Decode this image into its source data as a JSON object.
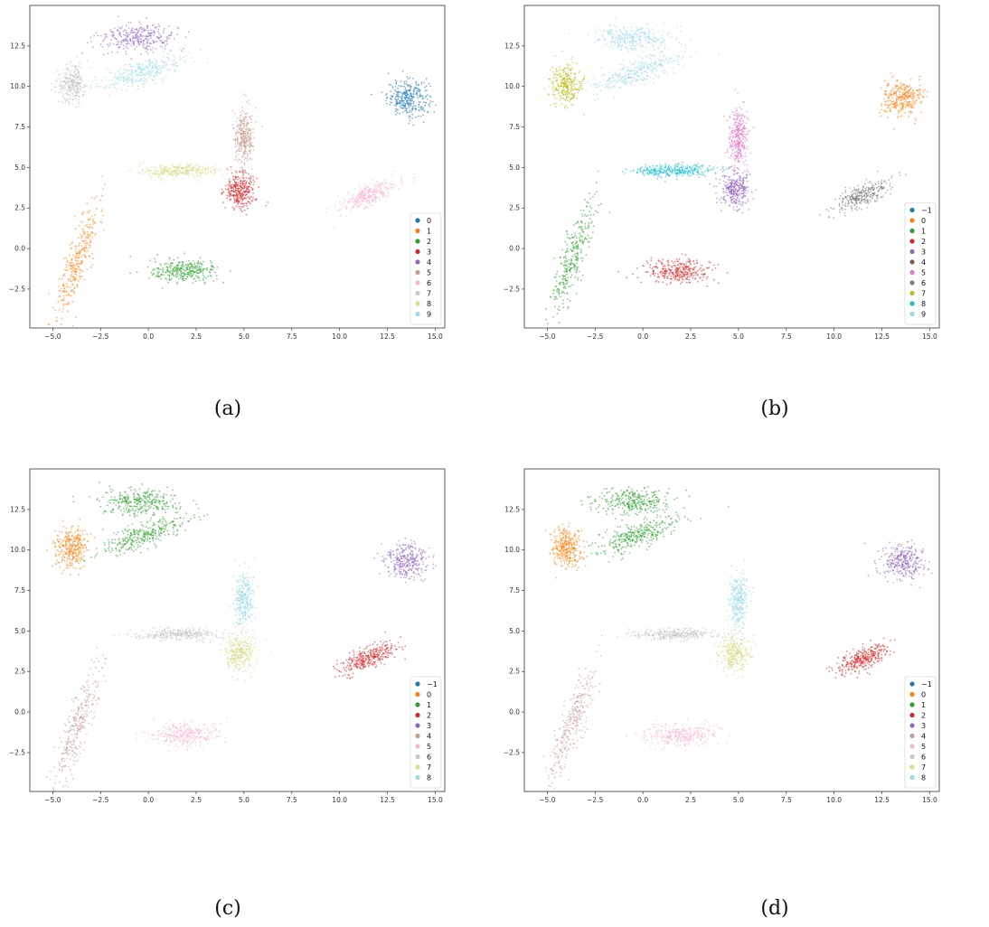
{
  "palette": {
    "blue": "#1f77b4",
    "orange": "#ff7f0e",
    "green": "#2ca02c",
    "red": "#d62728",
    "purple": "#9467bd",
    "brown": "#c49c94",
    "pink": "#f7b6d2",
    "gray": "#c7c7c7",
    "olive": "#dbdb8d",
    "lightblue": "#9edae5",
    "darkgray": "#7f7f7f",
    "darkolive": "#bcbd22",
    "cyan": "#17becf",
    "pinkmag": "#e377c2"
  },
  "chart_data": [
    {
      "type": "scatter",
      "caption": "(a)",
      "xlim": [
        -6.2,
        15.5
      ],
      "ylim": [
        -4.9,
        15.0
      ],
      "xticks": [
        "−5.0",
        "−2.5",
        "0.0",
        "2.5",
        "5.0",
        "7.5",
        "10.0",
        "12.5",
        "15.0"
      ],
      "xtick_values": [
        -5,
        -2.5,
        0,
        2.5,
        5,
        7.5,
        10,
        12.5,
        15
      ],
      "yticks": [
        "−2.5",
        "0.0",
        "2.5",
        "5.0",
        "7.5",
        "10.0",
        "12.5"
      ],
      "ytick_values": [
        -2.5,
        0,
        2.5,
        5,
        7.5,
        10,
        12.5
      ],
      "legend_position": "lower right",
      "legend": [
        {
          "label": "0",
          "color": "#1f77b4"
        },
        {
          "label": "1",
          "color": "#ff7f0e"
        },
        {
          "label": "2",
          "color": "#2ca02c"
        },
        {
          "label": "3",
          "color": "#d62728"
        },
        {
          "label": "4",
          "color": "#9467bd"
        },
        {
          "label": "5",
          "color": "#c49c94"
        },
        {
          "label": "6",
          "color": "#f7b6d2"
        },
        {
          "label": "7",
          "color": "#c7c7c7"
        },
        {
          "label": "8",
          "color": "#dbdb8d"
        },
        {
          "label": "9",
          "color": "#9edae5"
        }
      ],
      "clusters": [
        {
          "label": "0",
          "color": "#1f77b4",
          "center": [
            13.6,
            9.3
          ],
          "spread": [
            0.55,
            0.55
          ]
        },
        {
          "label": "1",
          "color": "#ff7f0e",
          "center": [
            -3.7,
            -0.7
          ],
          "spread": [
            0.3,
            1.9
          ],
          "tilt": -0.28
        },
        {
          "label": "2",
          "color": "#2ca02c",
          "center": [
            1.9,
            -1.4
          ],
          "spread": [
            0.9,
            0.35
          ]
        },
        {
          "label": "3",
          "color": "#d62728",
          "center": [
            4.8,
            3.6
          ],
          "spread": [
            0.4,
            0.55
          ]
        },
        {
          "label": "4",
          "color": "#9467bd",
          "center": [
            -0.5,
            13.0
          ],
          "spread": [
            1.0,
            0.4
          ]
        },
        {
          "label": "5",
          "color": "#c49c94",
          "center": [
            5.0,
            6.9
          ],
          "spread": [
            0.25,
            0.9
          ]
        },
        {
          "label": "6",
          "color": "#f7b6d2",
          "center": [
            11.5,
            3.3
          ],
          "spread": [
            0.8,
            0.3
          ],
          "tilt": 0.5
        },
        {
          "label": "7",
          "color": "#c7c7c7",
          "center": [
            -4.0,
            10.1
          ],
          "spread": [
            0.4,
            0.6
          ]
        },
        {
          "label": "8",
          "color": "#dbdb8d",
          "center": [
            1.6,
            4.8
          ],
          "spread": [
            1.1,
            0.18
          ]
        },
        {
          "label": "9",
          "color": "#9edae5",
          "center": [
            -0.3,
            10.9
          ],
          "spread": [
            1.2,
            0.35
          ],
          "tilt": 0.4
        }
      ]
    },
    {
      "type": "scatter",
      "caption": "(b)",
      "xlim": [
        -6.2,
        15.5
      ],
      "ylim": [
        -4.9,
        15.0
      ],
      "xticks": [
        "−5.0",
        "−2.5",
        "0.0",
        "2.5",
        "5.0",
        "7.5",
        "10.0",
        "12.5",
        "15.0"
      ],
      "xtick_values": [
        -5,
        -2.5,
        0,
        2.5,
        5,
        7.5,
        10,
        12.5,
        15
      ],
      "yticks": [
        "−2.5",
        "0.0",
        "2.5",
        "5.0",
        "7.5",
        "10.0",
        "12.5"
      ],
      "ytick_values": [
        -2.5,
        0,
        2.5,
        5,
        7.5,
        10,
        12.5
      ],
      "legend_position": "lower right",
      "legend": [
        {
          "label": "−1",
          "color": "#1f77b4"
        },
        {
          "label": "0",
          "color": "#ff7f0e"
        },
        {
          "label": "1",
          "color": "#2ca02c"
        },
        {
          "label": "2",
          "color": "#d62728"
        },
        {
          "label": "3",
          "color": "#9467bd"
        },
        {
          "label": "4",
          "color": "#8c564b"
        },
        {
          "label": "5",
          "color": "#e377c2"
        },
        {
          "label": "6",
          "color": "#7f7f7f"
        },
        {
          "label": "7",
          "color": "#bcbd22"
        },
        {
          "label": "8",
          "color": "#17becf"
        },
        {
          "label": "9",
          "color": "#9edae5"
        }
      ],
      "clusters": [
        {
          "label": "0",
          "color": "#ff7f0e",
          "center": [
            13.6,
            9.3
          ],
          "spread": [
            0.55,
            0.55
          ]
        },
        {
          "label": "1",
          "color": "#2ca02c",
          "center": [
            -3.7,
            -0.7
          ],
          "spread": [
            0.3,
            1.9
          ],
          "tilt": -0.28
        },
        {
          "label": "2",
          "color": "#d62728",
          "center": [
            1.9,
            -1.4
          ],
          "spread": [
            0.9,
            0.35
          ]
        },
        {
          "label": "3",
          "color": "#9467bd",
          "center": [
            4.8,
            3.6
          ],
          "spread": [
            0.4,
            0.55
          ]
        },
        {
          "label": "5",
          "color": "#e377c2",
          "center": [
            5.0,
            6.9
          ],
          "spread": [
            0.25,
            0.9
          ]
        },
        {
          "label": "6",
          "color": "#7f7f7f",
          "center": [
            11.5,
            3.3
          ],
          "spread": [
            0.8,
            0.3
          ],
          "tilt": 0.5
        },
        {
          "label": "7",
          "color": "#bcbd22",
          "center": [
            -4.0,
            10.1
          ],
          "spread": [
            0.4,
            0.6
          ]
        },
        {
          "label": "8",
          "color": "#17becf",
          "center": [
            1.6,
            4.8
          ],
          "spread": [
            1.1,
            0.18
          ]
        },
        {
          "label": "9",
          "color": "#9edae5",
          "center": [
            -0.5,
            13.0
          ],
          "spread": [
            1.0,
            0.4
          ]
        },
        {
          "label": "9",
          "color": "#9edae5",
          "center": [
            -0.3,
            10.9
          ],
          "spread": [
            1.2,
            0.35
          ],
          "tilt": 0.4
        }
      ]
    },
    {
      "type": "scatter",
      "caption": "(c)",
      "xlim": [
        -6.2,
        15.5
      ],
      "ylim": [
        -4.9,
        15.0
      ],
      "xticks": [
        "−5.0",
        "−2.5",
        "0.0",
        "2.5",
        "5.0",
        "7.5",
        "10.0",
        "12.5",
        "15.0"
      ],
      "xtick_values": [
        -5,
        -2.5,
        0,
        2.5,
        5,
        7.5,
        10,
        12.5,
        15
      ],
      "yticks": [
        "−2.5",
        "0.0",
        "2.5",
        "5.0",
        "7.5",
        "10.0",
        "12.5"
      ],
      "ytick_values": [
        -2.5,
        0,
        2.5,
        5,
        7.5,
        10,
        12.5
      ],
      "legend_position": "lower right",
      "legend": [
        {
          "label": "−1",
          "color": "#1f77b4"
        },
        {
          "label": "0",
          "color": "#ff7f0e"
        },
        {
          "label": "1",
          "color": "#2ca02c"
        },
        {
          "label": "2",
          "color": "#d62728"
        },
        {
          "label": "3",
          "color": "#9467bd"
        },
        {
          "label": "4",
          "color": "#c49c94"
        },
        {
          "label": "5",
          "color": "#f7b6d2"
        },
        {
          "label": "6",
          "color": "#c7c7c7"
        },
        {
          "label": "7",
          "color": "#dbdb8d"
        },
        {
          "label": "8",
          "color": "#9edae5"
        }
      ],
      "clusters": [
        {
          "label": "3",
          "color": "#9467bd",
          "center": [
            13.6,
            9.3
          ],
          "spread": [
            0.55,
            0.55
          ]
        },
        {
          "label": "4",
          "color": "#c49c94",
          "center": [
            -3.7,
            -0.7
          ],
          "spread": [
            0.3,
            1.9
          ],
          "tilt": -0.28
        },
        {
          "label": "5",
          "color": "#f7b6d2",
          "center": [
            1.9,
            -1.4
          ],
          "spread": [
            0.9,
            0.35
          ]
        },
        {
          "label": "7",
          "color": "#dbdb8d",
          "center": [
            4.8,
            3.6
          ],
          "spread": [
            0.4,
            0.55
          ]
        },
        {
          "label": "1",
          "color": "#2ca02c",
          "center": [
            -0.5,
            13.0
          ],
          "spread": [
            1.0,
            0.4
          ]
        },
        {
          "label": "8",
          "color": "#9edae5",
          "center": [
            5.0,
            6.9
          ],
          "spread": [
            0.25,
            0.9
          ]
        },
        {
          "label": "2",
          "color": "#d62728",
          "center": [
            11.5,
            3.3
          ],
          "spread": [
            0.8,
            0.3
          ],
          "tilt": 0.5
        },
        {
          "label": "0",
          "color": "#ff7f0e",
          "center": [
            -4.0,
            10.1
          ],
          "spread": [
            0.4,
            0.6
          ]
        },
        {
          "label": "6",
          "color": "#c7c7c7",
          "center": [
            1.6,
            4.8
          ],
          "spread": [
            1.1,
            0.18
          ]
        },
        {
          "label": "1",
          "color": "#2ca02c",
          "center": [
            -0.3,
            10.9
          ],
          "spread": [
            1.2,
            0.35
          ],
          "tilt": 0.4
        }
      ]
    },
    {
      "type": "scatter",
      "caption": "(d)",
      "xlim": [
        -6.2,
        15.5
      ],
      "ylim": [
        -4.9,
        15.0
      ],
      "xticks": [
        "−5.0",
        "−2.5",
        "0.0",
        "2.5",
        "5.0",
        "7.5",
        "10.0",
        "12.5",
        "15.0"
      ],
      "xtick_values": [
        -5,
        -2.5,
        0,
        2.5,
        5,
        7.5,
        10,
        12.5,
        15
      ],
      "yticks": [
        "−2.5",
        "0.0",
        "2.5",
        "5.0",
        "7.5",
        "10.0",
        "12.5"
      ],
      "ytick_values": [
        -2.5,
        0,
        2.5,
        5,
        7.5,
        10,
        12.5
      ],
      "legend_position": "lower right",
      "legend": [
        {
          "label": "−1",
          "color": "#1f77b4"
        },
        {
          "label": "0",
          "color": "#ff7f0e"
        },
        {
          "label": "1",
          "color": "#2ca02c"
        },
        {
          "label": "2",
          "color": "#d62728"
        },
        {
          "label": "3",
          "color": "#9467bd"
        },
        {
          "label": "4",
          "color": "#c49c94"
        },
        {
          "label": "5",
          "color": "#f7b6d2"
        },
        {
          "label": "6",
          "color": "#c7c7c7"
        },
        {
          "label": "7",
          "color": "#dbdb8d"
        },
        {
          "label": "8",
          "color": "#9edae5"
        }
      ],
      "clusters": [
        {
          "label": "3",
          "color": "#9467bd",
          "center": [
            13.6,
            9.3
          ],
          "spread": [
            0.55,
            0.55
          ]
        },
        {
          "label": "4",
          "color": "#c49c94",
          "center": [
            -3.7,
            -0.7
          ],
          "spread": [
            0.3,
            1.9
          ],
          "tilt": -0.28
        },
        {
          "label": "5",
          "color": "#f7b6d2",
          "center": [
            1.9,
            -1.4
          ],
          "spread": [
            0.9,
            0.35
          ]
        },
        {
          "label": "7",
          "color": "#dbdb8d",
          "center": [
            4.8,
            3.6
          ],
          "spread": [
            0.4,
            0.55
          ]
        },
        {
          "label": "1",
          "color": "#2ca02c",
          "center": [
            -0.5,
            13.0
          ],
          "spread": [
            1.0,
            0.4
          ]
        },
        {
          "label": "8",
          "color": "#9edae5",
          "center": [
            5.0,
            6.9
          ],
          "spread": [
            0.25,
            0.9
          ]
        },
        {
          "label": "2",
          "color": "#d62728",
          "center": [
            11.5,
            3.3
          ],
          "spread": [
            0.8,
            0.3
          ],
          "tilt": 0.5
        },
        {
          "label": "0",
          "color": "#ff7f0e",
          "center": [
            -4.0,
            10.1
          ],
          "spread": [
            0.4,
            0.6
          ]
        },
        {
          "label": "6",
          "color": "#c7c7c7",
          "center": [
            1.6,
            4.8
          ],
          "spread": [
            1.1,
            0.18
          ]
        },
        {
          "label": "1",
          "color": "#2ca02c",
          "center": [
            -0.3,
            10.9
          ],
          "spread": [
            1.2,
            0.35
          ],
          "tilt": 0.4
        }
      ]
    }
  ]
}
